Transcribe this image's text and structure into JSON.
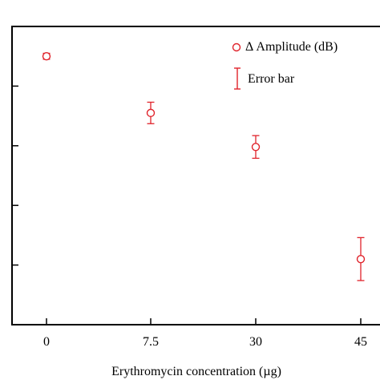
{
  "chart_data": {
    "type": "scatter",
    "categories": [
      "0",
      "7.5",
      "30",
      "45"
    ],
    "xlabel": "Erythromycin concentration (µg)",
    "ylabel": "",
    "ylim": [
      0,
      5
    ],
    "y_tick_labels_visible": false,
    "grid": false,
    "legend_position": "top-right",
    "series": [
      {
        "name": "Δ Amplitude (dB)",
        "values": [
          4.5,
          3.55,
          2.98,
          1.1
        ],
        "error": [
          0.05,
          0.18,
          0.19,
          0.36
        ],
        "color": "#e0232b"
      }
    ],
    "legend": {
      "marker_label": "Δ Amplitude (dB)",
      "errorbar_label": "Error bar"
    }
  }
}
